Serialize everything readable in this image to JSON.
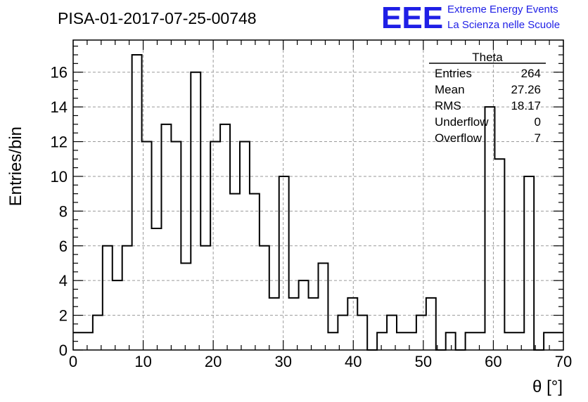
{
  "chart_data": {
    "type": "histogram",
    "title": "PISA-01-2017-07-25-00748",
    "xlabel": "θ [°]",
    "ylabel": "Entries/bin",
    "xlim": [
      0,
      70
    ],
    "ylim": [
      0,
      17.85
    ],
    "grid": true,
    "x_ticks": [
      0,
      10,
      20,
      30,
      40,
      50,
      60,
      70
    ],
    "y_ticks": [
      0,
      2,
      4,
      6,
      8,
      10,
      12,
      14,
      16
    ],
    "bin_edges_start": 0,
    "bin_width": 1.4,
    "values": [
      1,
      1,
      2,
      6,
      4,
      6,
      17,
      12,
      7,
      13,
      12,
      5,
      16,
      6,
      12,
      13,
      9,
      12,
      9,
      6,
      3,
      10,
      3,
      4,
      3,
      5,
      1,
      2,
      3,
      2,
      0,
      1,
      2,
      1,
      1,
      2,
      3,
      0,
      1,
      0,
      1,
      1,
      14,
      11,
      1,
      1,
      10,
      0,
      1,
      1
    ],
    "stats": {
      "name": "Theta",
      "rows": [
        {
          "label": "Entries",
          "value": "264"
        },
        {
          "label": "Mean",
          "value": "27.26"
        },
        {
          "label": "RMS",
          "value": "18.17"
        },
        {
          "label": "Underflow",
          "value": "0"
        },
        {
          "label": "Overflow",
          "value": "7"
        }
      ]
    }
  },
  "logo": {
    "mark": "EEE",
    "line1": "Extreme Energy Events",
    "line2": "La Scienza nelle Scuole",
    "color": "#1f1fe6"
  }
}
